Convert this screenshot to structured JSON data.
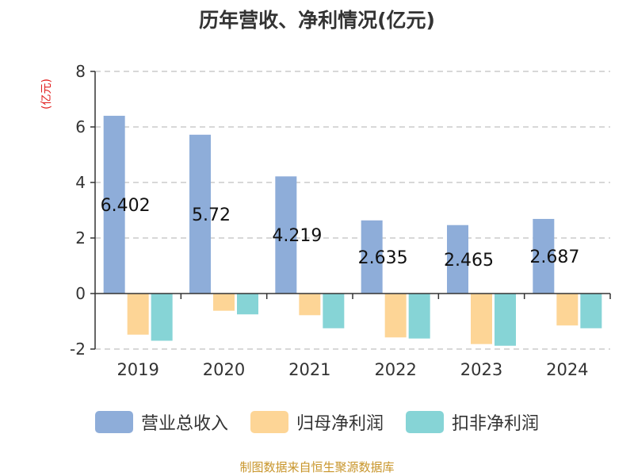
{
  "chart_data": {
    "type": "bar",
    "title": "历年营收、净利情况(亿元)",
    "unit_label": "(亿元)",
    "categories": [
      "2019",
      "2020",
      "2021",
      "2022",
      "2023",
      "2024"
    ],
    "ylim": [
      -2,
      8
    ],
    "yticks": [
      -2,
      0,
      2,
      4,
      6,
      8
    ],
    "grid": true,
    "legend_position": "bottom",
    "series": [
      {
        "name": "营业总收入",
        "color": "#8eadd9",
        "values": [
          6.402,
          5.72,
          4.219,
          2.635,
          2.465,
          2.687
        ],
        "labels": [
          "6.402",
          "5.72",
          "4.219",
          "2.635",
          "2.465",
          "2.687"
        ]
      },
      {
        "name": "归母净利润",
        "color": "#fdd596",
        "values": [
          -1.48,
          -0.62,
          -0.78,
          -1.58,
          -1.82,
          -1.15
        ]
      },
      {
        "name": "扣非净利润",
        "color": "#86d4d6",
        "values": [
          -1.7,
          -0.75,
          -1.25,
          -1.62,
          -1.88,
          -1.25
        ]
      }
    ],
    "source": "制图数据来自恒生聚源数据库"
  }
}
